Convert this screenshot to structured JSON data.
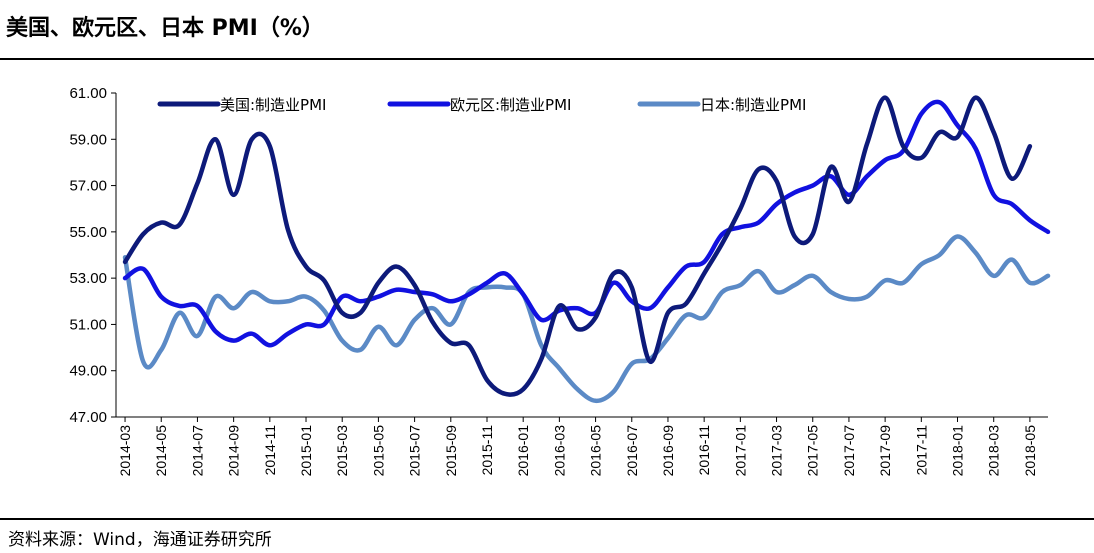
{
  "header": {
    "title": "美国、欧元区、日本 PMI（%）"
  },
  "footer": {
    "source": "资料来源：Wind，海通证券研究所"
  },
  "chart_data": {
    "type": "line",
    "title": "美国、欧元区、日本 PMI（%）",
    "xlabel": "",
    "ylabel": "",
    "ylim": [
      47,
      61
    ],
    "yticks": [
      "47.00",
      "49.00",
      "51.00",
      "53.00",
      "55.00",
      "57.00",
      "59.00",
      "61.00"
    ],
    "x": [
      "2014-03",
      "2014-04",
      "2014-05",
      "2014-06",
      "2014-07",
      "2014-08",
      "2014-09",
      "2014-10",
      "2014-11",
      "2014-12",
      "2015-01",
      "2015-02",
      "2015-03",
      "2015-04",
      "2015-05",
      "2015-06",
      "2015-07",
      "2015-08",
      "2015-09",
      "2015-10",
      "2015-11",
      "2015-12",
      "2016-01",
      "2016-02",
      "2016-03",
      "2016-04",
      "2016-05",
      "2016-06",
      "2016-07",
      "2016-08",
      "2016-09",
      "2016-10",
      "2016-11",
      "2016-12",
      "2017-01",
      "2017-02",
      "2017-03",
      "2017-04",
      "2017-05",
      "2017-06",
      "2017-07",
      "2017-08",
      "2017-09",
      "2017-10",
      "2017-11",
      "2017-12",
      "2018-01",
      "2018-02",
      "2018-03",
      "2018-04",
      "2018-05",
      "2018-06"
    ],
    "xticks": [
      "2014-03",
      "2014-05",
      "2014-07",
      "2014-09",
      "2014-11",
      "2015-01",
      "2015-03",
      "2015-05",
      "2015-07",
      "2015-09",
      "2015-11",
      "2016-01",
      "2016-03",
      "2016-05",
      "2016-07",
      "2016-09",
      "2016-11",
      "2017-01",
      "2017-03",
      "2017-05",
      "2017-07",
      "2017-09",
      "2017-11",
      "2018-01",
      "2018-03",
      "2018-05"
    ],
    "series": [
      {
        "name": "美国:制造业PMI",
        "color": "#0d1a7a",
        "values": [
          53.7,
          54.9,
          55.4,
          55.3,
          57.1,
          59.0,
          56.6,
          59.0,
          58.7,
          55.1,
          53.5,
          52.9,
          51.5,
          51.5,
          52.8,
          53.5,
          52.7,
          51.1,
          50.2,
          50.1,
          48.6,
          48.0,
          48.2,
          49.5,
          51.8,
          50.8,
          51.3,
          53.2,
          52.6,
          49.4,
          51.5,
          51.9,
          53.2,
          54.5,
          56.0,
          57.7,
          57.2,
          54.8,
          54.9,
          57.8,
          56.3,
          58.8,
          60.8,
          58.7,
          58.2,
          59.3,
          59.1,
          60.8,
          59.3,
          57.3,
          58.7,
          null
        ]
      },
      {
        "name": "欧元区:制造业PMI",
        "color": "#1111e0",
        "values": [
          53.0,
          53.4,
          52.2,
          51.8,
          51.8,
          50.7,
          50.3,
          50.6,
          50.1,
          50.6,
          51.0,
          51.0,
          52.2,
          52.0,
          52.2,
          52.5,
          52.4,
          52.3,
          52.0,
          52.3,
          52.8,
          53.2,
          52.3,
          51.2,
          51.6,
          51.7,
          51.5,
          52.8,
          52.0,
          51.7,
          52.6,
          53.5,
          53.7,
          54.9,
          55.2,
          55.4,
          56.2,
          56.7,
          57.0,
          57.4,
          56.6,
          57.4,
          58.1,
          58.5,
          60.1,
          60.6,
          59.6,
          58.6,
          56.6,
          56.2,
          55.5,
          55.0
        ]
      },
      {
        "name": "日本:制造业PMI",
        "color": "#5b8ac6",
        "values": [
          53.9,
          49.4,
          49.9,
          51.5,
          50.5,
          52.2,
          51.7,
          52.4,
          52.0,
          52.0,
          52.2,
          51.6,
          50.3,
          49.9,
          50.9,
          50.1,
          51.2,
          51.7,
          51.0,
          52.4,
          52.6,
          52.6,
          52.3,
          50.1,
          49.1,
          48.2,
          47.7,
          48.1,
          49.3,
          49.5,
          50.4,
          51.4,
          51.3,
          52.4,
          52.7,
          53.3,
          52.4,
          52.7,
          53.1,
          52.4,
          52.1,
          52.2,
          52.9,
          52.8,
          53.6,
          54.0,
          54.8,
          54.1,
          53.1,
          53.8,
          52.8,
          53.1
        ]
      }
    ]
  }
}
